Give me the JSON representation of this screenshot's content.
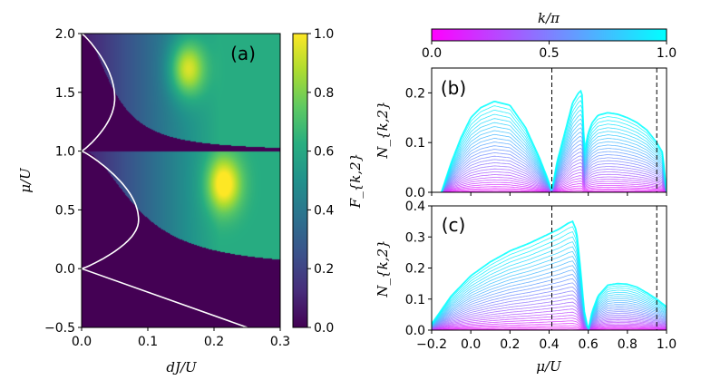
{
  "chart_data": [
    {
      "type": "heatmap",
      "panel_label": "(a)",
      "xlabel": "dJ/U",
      "ylabel": "μ/U",
      "xlim": [
        0.0,
        0.3
      ],
      "ylim": [
        -0.5,
        2.0
      ],
      "xticks": [
        "0.0",
        "0.1",
        "0.2",
        "0.3"
      ],
      "yticks": [
        "−0.5",
        "0.0",
        "0.5",
        "1.0",
        "1.5",
        "2.0"
      ],
      "colorbar": {
        "label": "F_{k,2}",
        "range": [
          0.0,
          1.0
        ],
        "ticks": [
          "0.0",
          "0.2",
          "0.4",
          "0.6",
          "0.8",
          "1.0"
        ],
        "colormap": "viridis"
      },
      "phase_boundary": {
        "lobes": [
          {
            "mu_min": 0.0,
            "mu_max": 1.0,
            "tip_dJ": 0.086,
            "tip_mu": 0.414
          },
          {
            "mu_min": 1.0,
            "mu_max": 2.0,
            "tip_dJ": 0.05,
            "tip_mu": 1.45
          }
        ],
        "lower_line": [
          [
            0.0,
            0.0
          ],
          [
            0.25,
            -0.5
          ]
        ]
      },
      "peak_ridges": [
        {
          "tip_dJ": 0.086,
          "tip_mu": 0.414,
          "max_dJ": 0.215,
          "max_mu": 0.72
        },
        {
          "tip_dJ": 0.05,
          "tip_mu": 1.45,
          "max_dJ": 0.16,
          "max_mu": 1.7
        }
      ]
    },
    {
      "type": "line",
      "panel_label": "(b)",
      "ylabel": "N_{k,2}",
      "xlim": [
        -0.2,
        1.0
      ],
      "ylim": [
        0.0,
        0.25
      ],
      "yticks": [
        "0.0",
        "0.1",
        "0.2"
      ],
      "vlines": [
        0.414,
        0.95
      ],
      "top_curve": {
        "x": [
          -0.15,
          -0.1,
          -0.05,
          0.0,
          0.05,
          0.12,
          0.2,
          0.28,
          0.35,
          0.39,
          0.414,
          0.44,
          0.48,
          0.52,
          0.55,
          0.565,
          0.575,
          0.578,
          0.58,
          0.6,
          0.62,
          0.65,
          0.7,
          0.75,
          0.8,
          0.85,
          0.9,
          0.95,
          0.98,
          1.0
        ],
        "y": [
          0.0,
          0.06,
          0.11,
          0.15,
          0.17,
          0.183,
          0.175,
          0.13,
          0.07,
          0.03,
          0.003,
          0.06,
          0.12,
          0.18,
          0.2,
          0.205,
          0.18,
          0.0,
          0.08,
          0.12,
          0.14,
          0.155,
          0.16,
          0.157,
          0.15,
          0.14,
          0.125,
          0.1,
          0.08,
          0.0
        ]
      },
      "family_count": 30
    },
    {
      "type": "line",
      "panel_label": "(c)",
      "xlabel": "μ/U",
      "ylabel": "N_{k,2}",
      "xlim": [
        -0.2,
        1.0
      ],
      "ylim": [
        0.0,
        0.4
      ],
      "xticks": [
        "−0.2",
        "0.0",
        "0.2",
        "0.4",
        "0.6",
        "0.8",
        "1.0"
      ],
      "yticks": [
        "0.0",
        "0.1",
        "0.2",
        "0.3",
        "0.4"
      ],
      "vlines": [
        0.414,
        0.95
      ],
      "top_curve": {
        "x": [
          -0.2,
          -0.1,
          0.0,
          0.1,
          0.2,
          0.3,
          0.4,
          0.45,
          0.5,
          0.52,
          0.54,
          0.56,
          0.58,
          0.6,
          0.62,
          0.65,
          0.7,
          0.75,
          0.8,
          0.85,
          0.9,
          0.95,
          1.0
        ],
        "y": [
          0.02,
          0.11,
          0.175,
          0.22,
          0.255,
          0.28,
          0.31,
          0.325,
          0.345,
          0.35,
          0.32,
          0.2,
          0.06,
          0.0,
          0.06,
          0.11,
          0.145,
          0.15,
          0.148,
          0.138,
          0.12,
          0.1,
          0.075
        ]
      },
      "family_count": 30
    },
    {
      "type": "colorbar",
      "label": "k/π",
      "range": [
        0.0,
        1.0
      ],
      "ticks": [
        "0.0",
        "0.5",
        "1.0"
      ],
      "colors": [
        "#ff00ff",
        "#00ffff"
      ]
    }
  ]
}
